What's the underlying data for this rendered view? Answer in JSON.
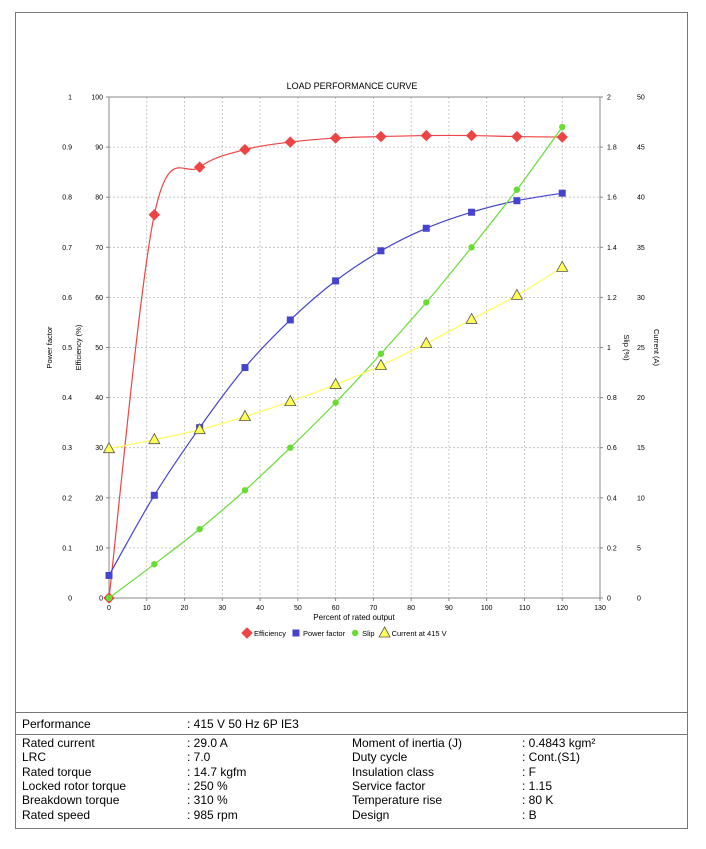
{
  "chart_data": {
    "type": "line",
    "title": "LOAD PERFORMANCE CURVE",
    "xlabel": "Percent of rated output",
    "xlim": [
      0,
      130
    ],
    "xticks": [
      0,
      10,
      20,
      30,
      40,
      50,
      60,
      70,
      80,
      90,
      100,
      110,
      120,
      130
    ],
    "grid": true,
    "legend_position": "bottom",
    "axes": {
      "power_factor": {
        "label": "Power factor",
        "side": "left",
        "lim": [
          0,
          1
        ],
        "ticks": [
          "0",
          "0.1",
          "0.2",
          "0.3",
          "0.4",
          "0.5",
          "0.6",
          "0.7",
          "0.8",
          "0.9",
          "1"
        ]
      },
      "efficiency": {
        "label": "Efficiency (%)",
        "side": "left",
        "lim": [
          0,
          100
        ],
        "ticks": [
          "0",
          "10",
          "20",
          "30",
          "40",
          "50",
          "60",
          "70",
          "80",
          "90",
          "100"
        ]
      },
      "slip": {
        "label": "Slip (%)",
        "side": "right",
        "lim": [
          0,
          2
        ],
        "ticks": [
          "0",
          "0.2",
          "0.4",
          "0.6",
          "0.8",
          "1",
          "1.2",
          "1.4",
          "1.6",
          "1.8",
          "2"
        ]
      },
      "current": {
        "label": "Current (A)",
        "side": "right",
        "lim": [
          0,
          50
        ],
        "ticks": [
          "0",
          "5",
          "10",
          "15",
          "20",
          "25",
          "30",
          "35",
          "40",
          "45",
          "50"
        ]
      }
    },
    "series": [
      {
        "name": "Efficiency",
        "axis": "efficiency",
        "color": "#ee4444",
        "marker": "diamond",
        "x": [
          0,
          12,
          24,
          36,
          48,
          60,
          72,
          84,
          96,
          108,
          120
        ],
        "y": [
          0,
          76.5,
          86,
          89.5,
          91,
          91.8,
          92.1,
          92.3,
          92.3,
          92.1,
          92
        ]
      },
      {
        "name": "Power factor",
        "axis": "power_factor",
        "color": "#4444cc",
        "marker": "square",
        "x": [
          0,
          12,
          24,
          36,
          48,
          60,
          72,
          84,
          96,
          108,
          120
        ],
        "y": [
          0.045,
          0.205,
          0.34,
          0.46,
          0.555,
          0.633,
          0.693,
          0.738,
          0.77,
          0.793,
          0.808
        ]
      },
      {
        "name": "Slip",
        "axis": "slip",
        "color": "#66dd33",
        "marker": "circle",
        "x": [
          0,
          12,
          24,
          36,
          48,
          60,
          72,
          84,
          96,
          108,
          120
        ],
        "y": [
          0,
          0.135,
          0.275,
          0.43,
          0.6,
          0.78,
          0.975,
          1.18,
          1.4,
          1.63,
          1.88
        ]
      },
      {
        "name": "Current at 415 V",
        "axis": "current",
        "color": "#ffff55",
        "marker": "triangle",
        "x": [
          0,
          12,
          24,
          36,
          48,
          60,
          72,
          84,
          96,
          108,
          120
        ],
        "y": [
          14.9,
          15.8,
          16.8,
          18.1,
          19.6,
          21.3,
          23.2,
          25.4,
          27.8,
          30.2,
          33
        ]
      }
    ]
  },
  "specs": {
    "performance_label": "Performance",
    "performance_value": ": 415 V 50 Hz 6P IE3",
    "left": [
      {
        "label": "Rated current",
        "value": ": 29.0 A"
      },
      {
        "label": "LRC",
        "value": ": 7.0"
      },
      {
        "label": "Rated torque",
        "value": ": 14.7 kgfm"
      },
      {
        "label": "Locked rotor torque",
        "value": ": 250 %"
      },
      {
        "label": "Breakdown torque",
        "value": ": 310 %"
      },
      {
        "label": "Rated speed",
        "value": ": 985 rpm"
      }
    ],
    "right": [
      {
        "label": "Moment of inertia (J)",
        "value": ": 0.4843 kgm²"
      },
      {
        "label": "Duty cycle",
        "value": ": Cont.(S1)"
      },
      {
        "label": "Insulation class",
        "value": ": F"
      },
      {
        "label": "Service factor",
        "value": ": 1.15"
      },
      {
        "label": "Temperature rise",
        "value": ": 80 K"
      },
      {
        "label": "Design",
        "value": ": B"
      }
    ]
  }
}
